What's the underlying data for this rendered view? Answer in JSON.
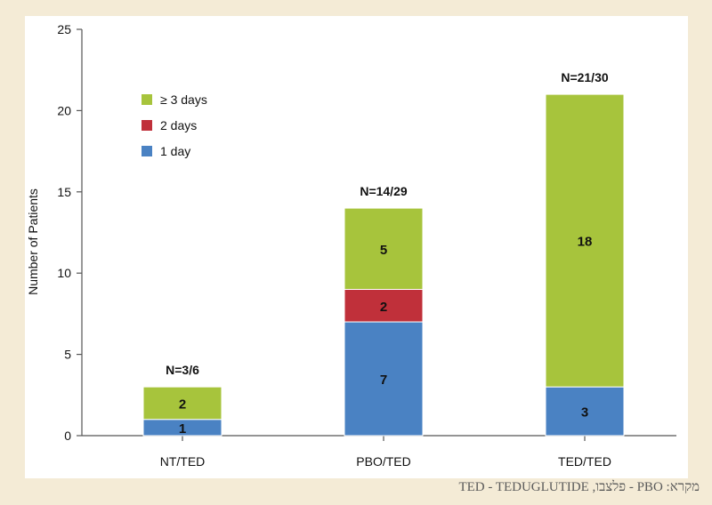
{
  "chart_data": {
    "type": "bar",
    "stacked": true,
    "title": "",
    "xlabel": "",
    "ylabel": "Number of Patients",
    "ylim": [
      0,
      25
    ],
    "yticks": [
      0,
      5,
      10,
      15,
      20,
      25
    ],
    "categories": [
      "NT/TED",
      "PBO/TED",
      "TED/TED"
    ],
    "totals_labels": [
      "N=3/6",
      "N=14/29",
      "N=21/30"
    ],
    "series": [
      {
        "name": "1 day",
        "color": "#4a82c3",
        "values": [
          1,
          7,
          3
        ]
      },
      {
        "name": "2 days",
        "color": "#c0303a",
        "values": [
          0,
          2,
          0
        ]
      },
      {
        "name": "≥ 3 days",
        "color": "#a7c43c",
        "values": [
          2,
          5,
          18
        ]
      }
    ],
    "legend": {
      "placement": "top-left",
      "entries": [
        "≥ 3 days",
        "2 days",
        "1 day"
      ]
    }
  },
  "caption": "מקרא: PBO - פלצבו, TED - TEDUGLUTIDE"
}
